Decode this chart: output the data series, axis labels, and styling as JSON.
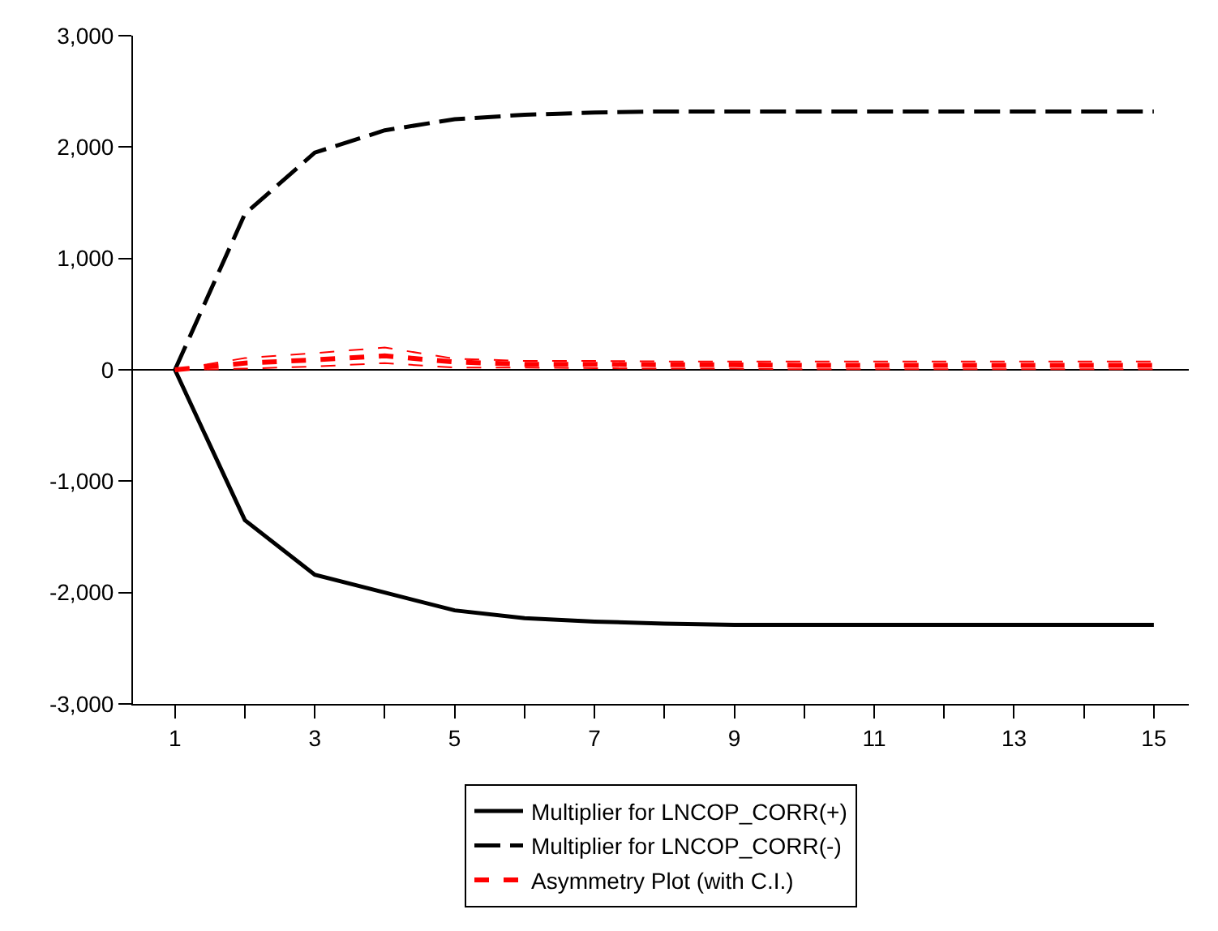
{
  "chart_data": {
    "type": "line",
    "x": [
      1,
      2,
      3,
      4,
      5,
      6,
      7,
      8,
      9,
      10,
      11,
      12,
      13,
      14,
      15
    ],
    "series": [
      {
        "name": "Multiplier for LNCOP_CORR(+)",
        "color": "#000000",
        "line_style": "solid",
        "values": [
          0,
          -1350,
          -1840,
          -2000,
          -2160,
          -2230,
          -2260,
          -2280,
          -2290,
          -2290,
          -2290,
          -2290,
          -2290,
          -2290,
          -2290
        ]
      },
      {
        "name": "Multiplier for LNCOP_CORR(-)",
        "color": "#000000",
        "line_style": "dashed",
        "values": [
          0,
          1400,
          1950,
          2150,
          2250,
          2290,
          2310,
          2320,
          2320,
          2320,
          2320,
          2320,
          2320,
          2320,
          2320
        ]
      },
      {
        "name": "Asymmetry Plot (with C.I.)",
        "color": "#ff0000",
        "line_style": "dotted",
        "values": [
          0,
          60,
          90,
          125,
          70,
          50,
          50,
          45,
          45,
          40,
          40,
          40,
          40,
          40,
          40
        ]
      },
      {
        "color": "#ff0000",
        "line_style": "dotted",
        "values": [
          0,
          105,
          150,
          200,
          100,
          80,
          80,
          75,
          75,
          75,
          75,
          75,
          75,
          75,
          75
        ]
      },
      {
        "color": "#ff0000",
        "line_style": "dotted",
        "values": [
          0,
          10,
          30,
          60,
          20,
          20,
          15,
          10,
          10,
          5,
          5,
          5,
          5,
          5,
          5
        ]
      }
    ],
    "xlim": [
      0.4,
      15.5
    ],
    "xticks": [
      1,
      {
        "value": 2,
        "label": null
      },
      3,
      {
        "value": 4,
        "label": null
      },
      5,
      {
        "value": 6,
        "label": null
      },
      7,
      {
        "value": 8,
        "label": null
      },
      9,
      {
        "value": 10,
        "label": null
      },
      11,
      {
        "value": 12,
        "label": null
      },
      13,
      {
        "value": 14,
        "label": null
      },
      15
    ],
    "ylim": [
      -3000,
      3000
    ],
    "yticks": [
      {
        "value": -3000,
        "label": "-3,000"
      },
      {
        "value": -2000,
        "label": "-2,000"
      },
      {
        "value": -1000,
        "label": "-1,000"
      },
      0,
      {
        "value": 1000,
        "label": "1,000"
      },
      {
        "value": 2000,
        "label": "2,000"
      },
      {
        "value": 3000,
        "label": "3,000"
      }
    ],
    "ref_lines": [
      {
        "axis": "y",
        "value": 0,
        "color": "#000000",
        "line_style": "solid"
      }
    ],
    "grid": false,
    "legend": "bottom",
    "marker": "none"
  }
}
